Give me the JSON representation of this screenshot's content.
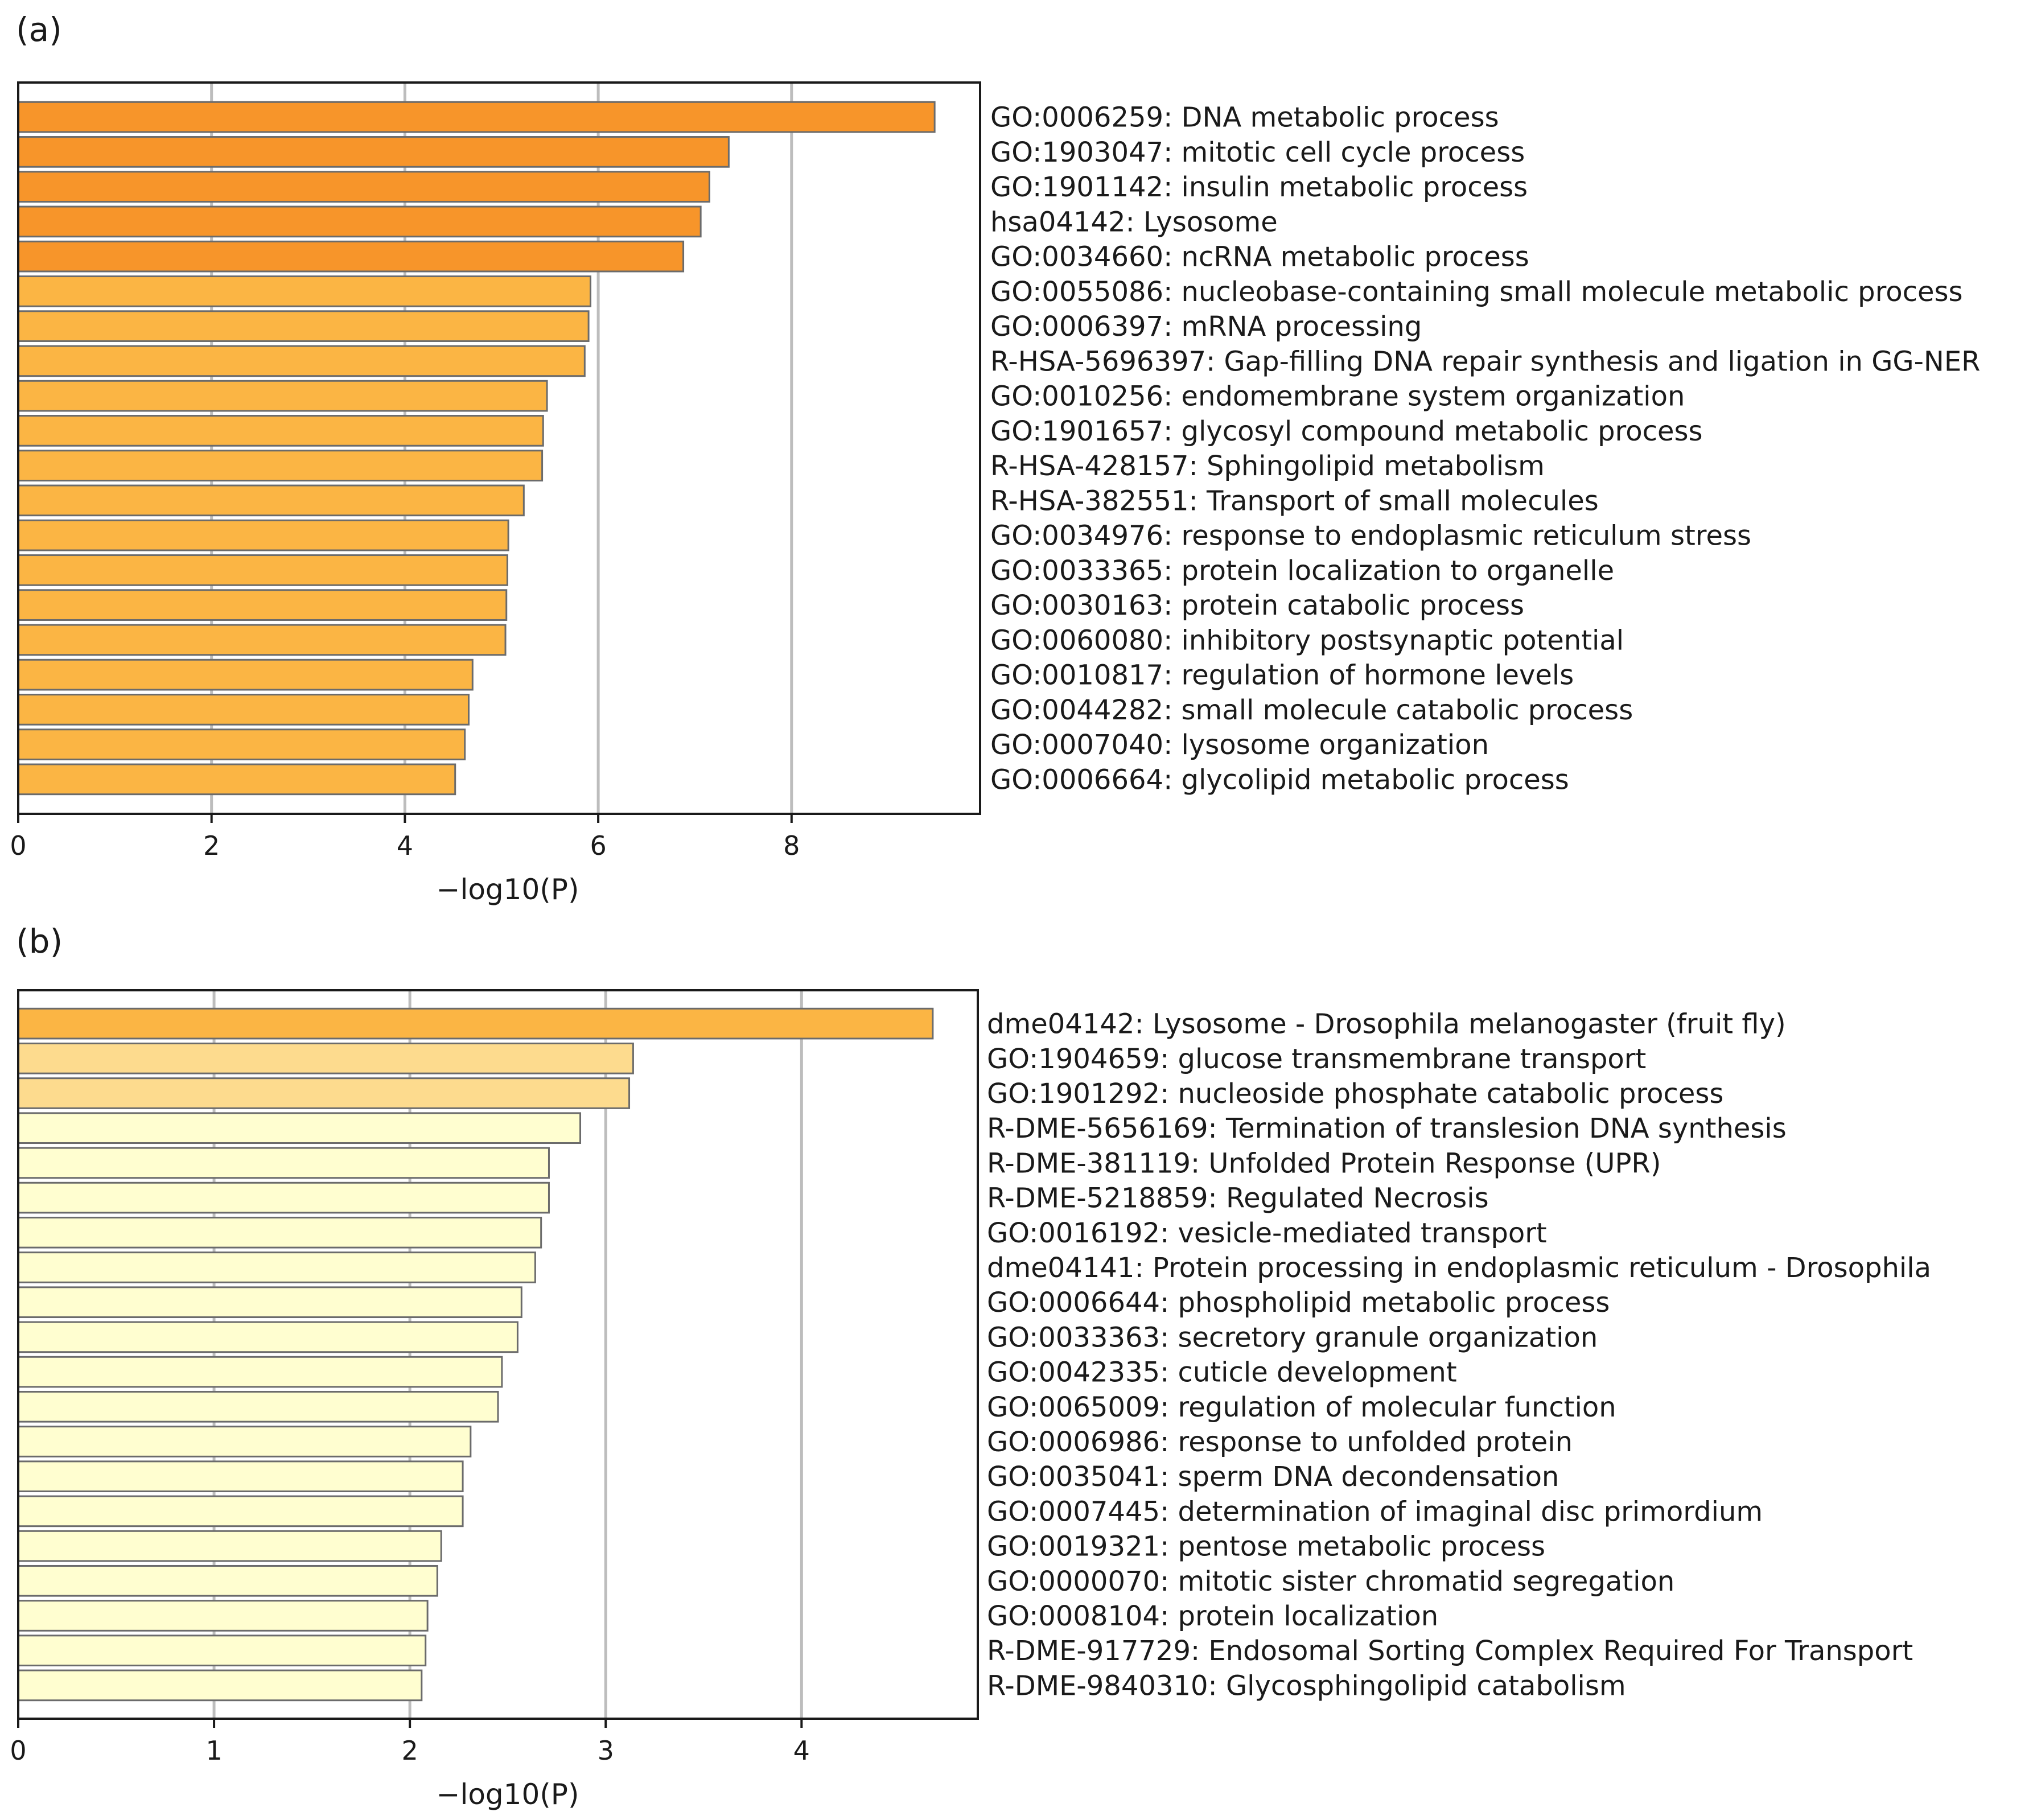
{
  "chart_data": [
    {
      "type": "bar",
      "orientation": "horizontal",
      "panel_label": "(a)",
      "xlabel": "−log10(P)",
      "ylabel": "",
      "xlim": [
        0,
        9.95
      ],
      "xticks": [
        0,
        2,
        4,
        6,
        8
      ],
      "grid": true,
      "categories": [
        "GO:0006259: DNA metabolic process",
        "GO:1903047: mitotic cell cycle process",
        "GO:1901142: insulin metabolic process",
        "hsa04142: Lysosome",
        "GO:0034660: ncRNA metabolic process",
        "GO:0055086: nucleobase-containing small molecule metabolic process",
        "GO:0006397: mRNA processing",
        "R-HSA-5696397: Gap-filling DNA repair synthesis and ligation in GG-NER",
        "GO:0010256: endomembrane system organization",
        "GO:1901657: glycosyl compound metabolic process",
        "R-HSA-428157: Sphingolipid metabolism",
        "R-HSA-382551: Transport of small molecules",
        "GO:0034976: response to endoplasmic reticulum stress",
        "GO:0033365: protein localization to organelle",
        "GO:0030163: protein catabolic process",
        "GO:0060080: inhibitory postsynaptic potential",
        "GO:0010817: regulation of hormone levels",
        "GO:0044282: small molecule catabolic process",
        "GO:0007040: lysosome organization",
        "GO:0006664: glycolipid metabolic process"
      ],
      "values": [
        9.48,
        7.35,
        7.15,
        7.06,
        6.88,
        5.92,
        5.9,
        5.86,
        5.47,
        5.43,
        5.42,
        5.23,
        5.07,
        5.06,
        5.05,
        5.04,
        4.7,
        4.66,
        4.62,
        4.52
      ],
      "colors": [
        "#f7952a",
        "#f7952a",
        "#f7952a",
        "#f7952a",
        "#f7952a",
        "#fbb544",
        "#fbb544",
        "#fbb544",
        "#fbb544",
        "#fbb544",
        "#fbb544",
        "#fbb544",
        "#fbb544",
        "#fbb544",
        "#fbb544",
        "#fbb544",
        "#fbb544",
        "#fbb544",
        "#fbb544",
        "#fbb544"
      ]
    },
    {
      "type": "bar",
      "orientation": "horizontal",
      "panel_label": "(b)",
      "xlabel": "−log10(P)",
      "ylabel": "",
      "xlim": [
        0,
        4.9
      ],
      "xticks": [
        0,
        1,
        2,
        3,
        4
      ],
      "grid": true,
      "categories": [
        "dme04142: Lysosome - Drosophila melanogaster (fruit fly)",
        "GO:1904659: glucose transmembrane transport",
        "GO:1901292: nucleoside phosphate catabolic process",
        "R-DME-5656169: Termination of translesion DNA synthesis",
        "R-DME-381119: Unfolded Protein Response (UPR)",
        "R-DME-5218859: Regulated Necrosis",
        "GO:0016192: vesicle-mediated transport",
        "dme04141: Protein processing in endoplasmic reticulum - Drosophila",
        "GO:0006644: phospholipid metabolic process",
        "GO:0033363: secretory granule organization",
        "GO:0042335: cuticle development",
        "GO:0065009: regulation of molecular function",
        "GO:0006986: response to unfolded protein",
        "GO:0035041: sperm DNA decondensation",
        "GO:0007445: determination of imaginal disc primordium",
        "GO:0019321: pentose metabolic process",
        "GO:0000070: mitotic sister chromatid segregation",
        "GO:0008104: protein localization",
        "R-DME-917729: Endosomal Sorting Complex Required For Transport",
        "R-DME-9840310: Glycosphingolipid catabolism"
      ],
      "values": [
        4.67,
        3.14,
        3.12,
        2.87,
        2.71,
        2.71,
        2.67,
        2.64,
        2.57,
        2.55,
        2.47,
        2.45,
        2.31,
        2.27,
        2.27,
        2.16,
        2.14,
        2.09,
        2.08,
        2.06
      ],
      "colors": [
        "#fbb544",
        "#fddb8e",
        "#fddb8e",
        "#fffed0",
        "#fffed0",
        "#fffed0",
        "#fffed0",
        "#fffed0",
        "#fffed0",
        "#fffed0",
        "#fffed0",
        "#fffed0",
        "#fffed0",
        "#fffed0",
        "#fffed0",
        "#fffed0",
        "#fffed0",
        "#fffed0",
        "#fffed0",
        "#fffed0"
      ]
    }
  ]
}
